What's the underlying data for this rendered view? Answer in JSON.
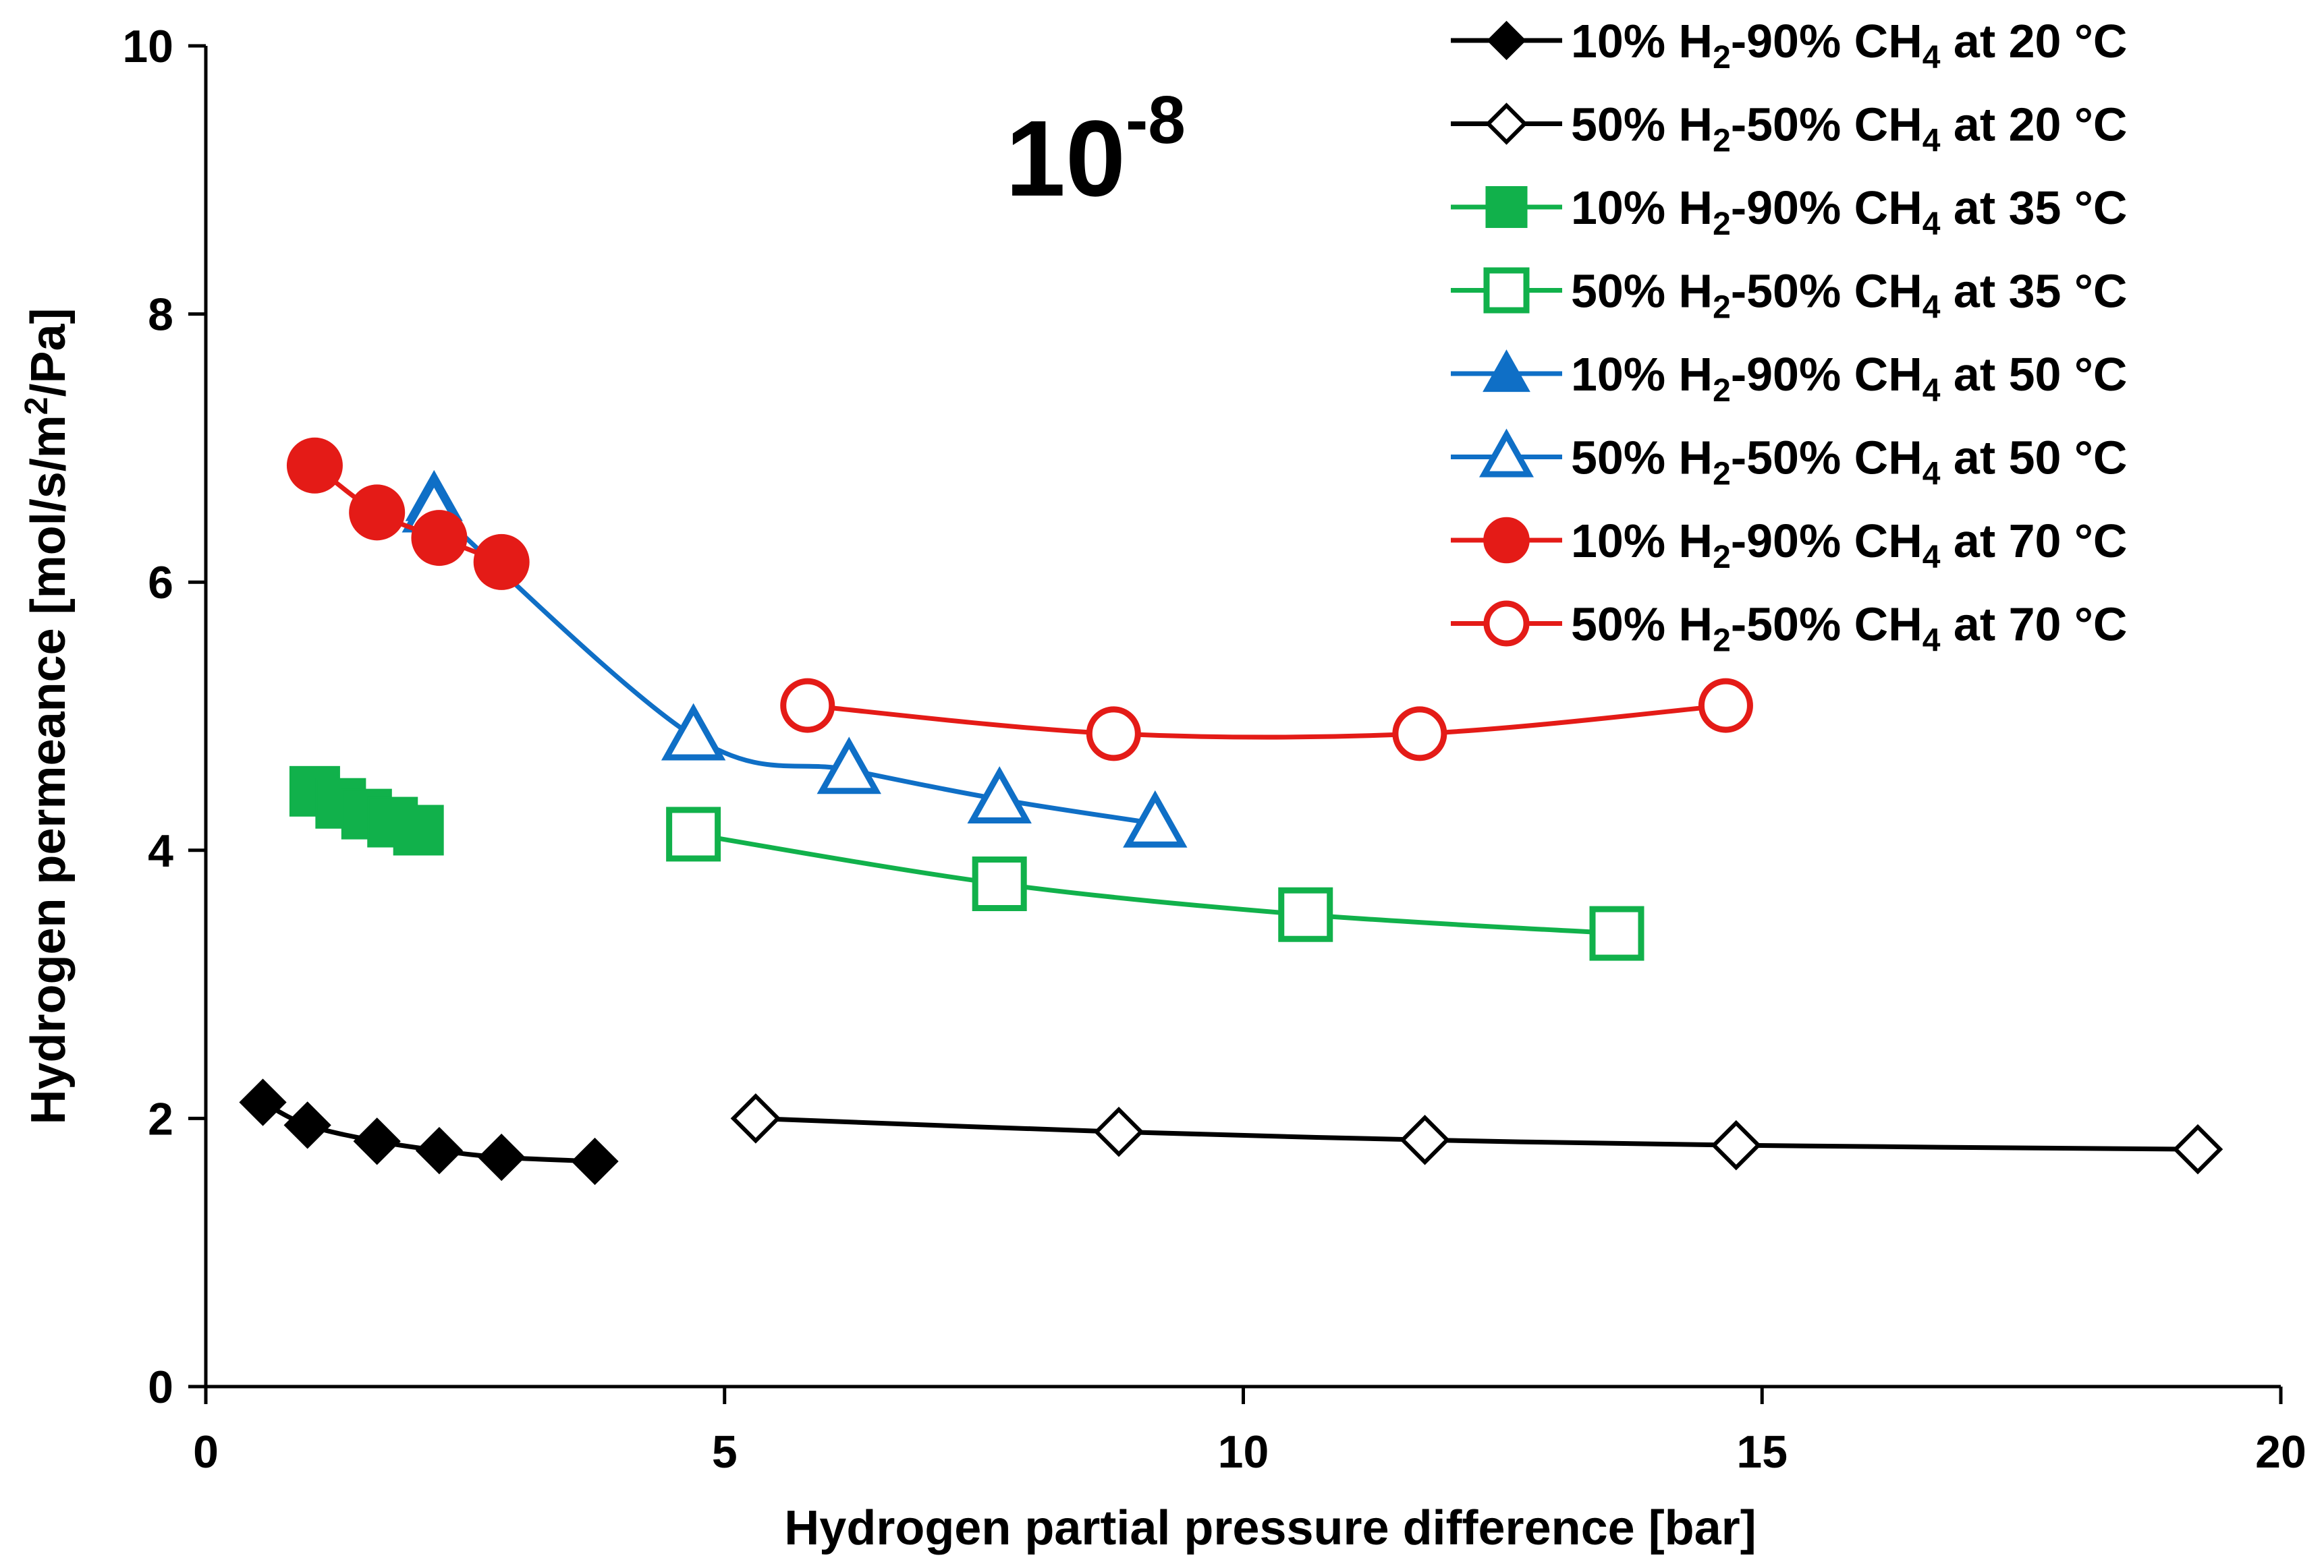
{
  "chart_data": {
    "type": "line",
    "title": "",
    "scale_label": {
      "base": "10",
      "exponent": "-8"
    },
    "xlabel": "Hydrogen partial pressure difference [bar]",
    "ylabel": "Hydrogen permeance [mol/s/m²/Pa]",
    "ylabel_parts": {
      "before": "Hydrogen permeance [mol/s/m",
      "sup": "2",
      "after": "/Pa]"
    },
    "xlim": [
      0,
      20
    ],
    "ylim": [
      0,
      10
    ],
    "xticks": [
      0,
      5,
      10,
      15,
      20
    ],
    "yticks": [
      0,
      2,
      4,
      6,
      8,
      10
    ],
    "xtick_labels": [
      "0",
      "5",
      "10",
      "15",
      "20"
    ],
    "ytick_labels": [
      "0",
      "2",
      "4",
      "6",
      "8",
      "10"
    ],
    "grid": false,
    "legend_position": "top-right",
    "series": [
      {
        "name": "10% H₂-90% CH₄ at 20 °C",
        "label_parts": [
          "10% H",
          "2",
          "-90% CH",
          "4",
          " at 20 °C"
        ],
        "color": "#000000",
        "marker": "diamond",
        "filled": true,
        "line": true,
        "x": [
          0.55,
          0.98,
          1.65,
          2.25,
          2.85,
          3.75
        ],
        "y": [
          2.12,
          1.95,
          1.83,
          1.76,
          1.71,
          1.68
        ]
      },
      {
        "name": "50% H₂-50% CH₄ at 20 °C",
        "label_parts": [
          "50% H",
          "2",
          "-50% CH",
          "4",
          " at 20 °C"
        ],
        "color": "#000000",
        "marker": "diamond",
        "filled": false,
        "line": true,
        "x": [
          5.3,
          8.8,
          11.75,
          14.75,
          19.2
        ],
        "y": [
          2.0,
          1.9,
          1.84,
          1.8,
          1.77
        ]
      },
      {
        "name": "10% H₂-90% CH₄ at 35 °C",
        "label_parts": [
          "10% H",
          "2",
          "-90% CH",
          "4",
          " at 35 °C"
        ],
        "color": "#11b14b",
        "marker": "square",
        "filled": true,
        "line": true,
        "x": [
          1.05,
          1.3,
          1.55,
          1.8,
          2.05
        ],
        "y": [
          4.44,
          4.35,
          4.27,
          4.21,
          4.15
        ]
      },
      {
        "name": "50% H₂-50% CH₄ at 35 °C",
        "label_parts": [
          "50% H",
          "2",
          "-50% CH",
          "4",
          " at 35 °C"
        ],
        "color": "#11b14b",
        "marker": "square",
        "filled": false,
        "line": true,
        "x": [
          4.7,
          7.65,
          10.6,
          13.6
        ],
        "y": [
          4.12,
          3.75,
          3.52,
          3.38
        ]
      },
      {
        "name": "10% H₂-90% CH₄ at 50 °C",
        "label_parts": [
          "10% H",
          "2",
          "-90% CH",
          "4",
          " at 50 °C"
        ],
        "color": "#0f6fc6",
        "marker": "triangle",
        "filled": true,
        "line": true,
        "x": [
          2.2
        ],
        "y": [
          6.62
        ]
      },
      {
        "name": "50% H₂-50% CH₄ at 50 °C",
        "label_parts": [
          "50% H",
          "2",
          "-50% CH",
          "4",
          " at 50 °C"
        ],
        "color": "#0f6fc6",
        "marker": "triangle",
        "filled": false,
        "line": true,
        "x": [
          2.2,
          4.7,
          6.2,
          7.65,
          9.15
        ],
        "y": [
          6.55,
          4.85,
          4.6,
          4.38,
          4.2
        ]
      },
      {
        "name": "10% H₂-90% CH₄ at 70 °C",
        "label_parts": [
          "10% H",
          "2",
          "-90% CH",
          "4",
          " at 70 °C"
        ],
        "color": "#e41b17",
        "marker": "circle",
        "filled": true,
        "line": true,
        "x": [
          1.05,
          1.65,
          2.25,
          2.85
        ],
        "y": [
          6.87,
          6.52,
          6.33,
          6.15
        ]
      },
      {
        "name": "50% H₂-50% CH₄ at 70 °C",
        "label_parts": [
          "50% H",
          "2",
          "-50% CH",
          "4",
          " at 70 °C"
        ],
        "color": "#e41b17",
        "marker": "circle",
        "filled": false,
        "line": true,
        "x": [
          5.8,
          8.75,
          11.7,
          14.65
        ],
        "y": [
          5.08,
          4.87,
          4.87,
          5.08
        ]
      }
    ]
  }
}
